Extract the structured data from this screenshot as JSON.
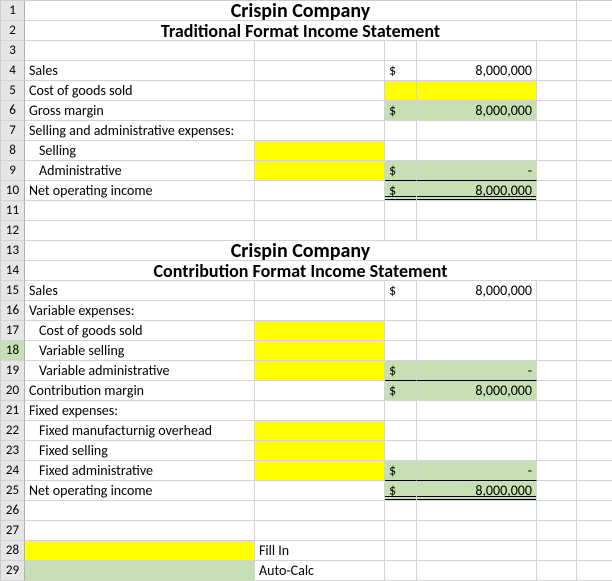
{
  "colors": {
    "highlight_input": "#ffff00",
    "highlight_calc": "#c6e0b4",
    "rowheader_bg": "#e6e6e6",
    "grid_line": "#d4d4d4"
  },
  "fonts": {
    "body_family": "Calibri",
    "body_size_pt": 11,
    "title_size_pt": 14,
    "title_weight": "bold"
  },
  "rows": {
    "r1": {
      "num": "1",
      "title": "Crispin Company"
    },
    "r2": {
      "num": "2",
      "title": "Traditional Format Income Statement"
    },
    "r3": {
      "num": "3"
    },
    "r4": {
      "num": "4",
      "label": "Sales",
      "cur": "$",
      "val": "8,000,000"
    },
    "r5": {
      "num": "5",
      "label": "Cost of goods sold"
    },
    "r6": {
      "num": "6",
      "label": "Gross margin",
      "cur": "$",
      "val": "8,000,000"
    },
    "r7": {
      "num": "7",
      "label": "Selling and administrative expenses:"
    },
    "r8": {
      "num": "8",
      "label": "Selling"
    },
    "r9": {
      "num": "9",
      "label": "Administrative",
      "cur": "$",
      "val": "-"
    },
    "r10": {
      "num": "10",
      "label": "Net operating income",
      "cur": "$",
      "val": "8,000,000"
    },
    "r11": {
      "num": "11"
    },
    "r12": {
      "num": "12"
    },
    "r13": {
      "num": "13",
      "title": "Crispin Company"
    },
    "r14": {
      "num": "14",
      "title": "Contribution Format Income Statement"
    },
    "r15": {
      "num": "15",
      "label": "Sales",
      "cur": "$",
      "val": "8,000,000"
    },
    "r16": {
      "num": "16",
      "label": "Variable expenses:"
    },
    "r17": {
      "num": "17",
      "label": "Cost of goods sold"
    },
    "r18": {
      "num": "18",
      "label": "Variable selling"
    },
    "r19": {
      "num": "19",
      "label": "Variable administrative",
      "cur": "$",
      "val": "-"
    },
    "r20": {
      "num": "20",
      "label": "Contribution margin",
      "cur": "$",
      "val": "8,000,000"
    },
    "r21": {
      "num": "21",
      "label": "Fixed expenses:"
    },
    "r22": {
      "num": "22",
      "label": "Fixed manufacturnig overhead"
    },
    "r23": {
      "num": "23",
      "label": "Fixed selling"
    },
    "r24": {
      "num": "24",
      "label": "Fixed administrative",
      "cur": "$",
      "val": "-"
    },
    "r25": {
      "num": "25",
      "label": "Net operating income",
      "cur": "$",
      "val": "8,000,000"
    },
    "r26": {
      "num": "26"
    },
    "r27": {
      "num": "27"
    },
    "r28": {
      "num": "28",
      "legend": "Fill In"
    },
    "r29": {
      "num": "29",
      "legend": "Auto-Calc"
    }
  }
}
